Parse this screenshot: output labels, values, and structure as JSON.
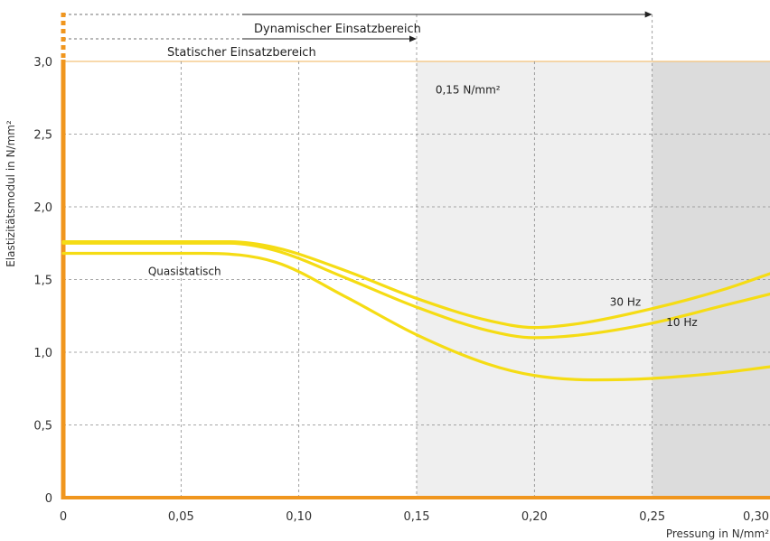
{
  "chart_data": {
    "type": "line",
    "xlabel": "Pressung in N/mm²",
    "ylabel": "Elastizitätsmodul in N/mm²",
    "xlim": [
      0,
      0.3
    ],
    "ylim": [
      0,
      3.0
    ],
    "x_ticks": [
      {
        "v": 0,
        "label": "0"
      },
      {
        "v": 0.05,
        "label": "0,05"
      },
      {
        "v": 0.1,
        "label": "0,10"
      },
      {
        "v": 0.15,
        "label": "0,15"
      },
      {
        "v": 0.2,
        "label": "0,20"
      },
      {
        "v": 0.25,
        "label": "0,25"
      },
      {
        "v": 0.3,
        "label": "0,30"
      }
    ],
    "y_ticks": [
      {
        "v": 0,
        "label": "0"
      },
      {
        "v": 0.5,
        "label": "0,5"
      },
      {
        "v": 1.0,
        "label": "1,0"
      },
      {
        "v": 1.5,
        "label": "1,5"
      },
      {
        "v": 2.0,
        "label": "2,0"
      },
      {
        "v": 2.5,
        "label": "2,5"
      },
      {
        "v": 3.0,
        "label": "3,0"
      }
    ],
    "grid": true,
    "regions": [
      {
        "from": 0.15,
        "to": 0.25,
        "color": "#efefef"
      },
      {
        "from": 0.25,
        "to": 0.3,
        "color": "#dcdcdc"
      }
    ],
    "ranges": [
      {
        "label": "Dynamischer Einsatzbereich",
        "from": 0,
        "to": 0.25
      },
      {
        "label": "Statischer Einsatzbereich",
        "from": 0,
        "to": 0.15
      }
    ],
    "annotation": {
      "text": "0,15 N/mm²",
      "x": 0.158,
      "y": 2.78
    },
    "series": [
      {
        "name": "30 Hz",
        "color": "#f5dc14",
        "label_at": {
          "x": 0.232,
          "y": 1.32
        },
        "x": [
          0,
          0.07,
          0.09,
          0.12,
          0.15,
          0.18,
          0.2,
          0.22,
          0.25,
          0.28,
          0.3
        ],
        "y": [
          1.76,
          1.76,
          1.72,
          1.56,
          1.37,
          1.22,
          1.17,
          1.2,
          1.3,
          1.43,
          1.54
        ]
      },
      {
        "name": "10 Hz",
        "color": "#f5dc14",
        "label_at": {
          "x": 0.256,
          "y": 1.18
        },
        "x": [
          0,
          0.07,
          0.09,
          0.12,
          0.15,
          0.18,
          0.2,
          0.22,
          0.25,
          0.28,
          0.3
        ],
        "y": [
          1.75,
          1.75,
          1.7,
          1.51,
          1.31,
          1.15,
          1.1,
          1.12,
          1.2,
          1.32,
          1.4
        ]
      },
      {
        "name": "Quasistatisch",
        "color": "#f5dc14",
        "label_at": {
          "x": 0.036,
          "y": 1.53
        },
        "x": [
          0,
          0.06,
          0.09,
          0.12,
          0.15,
          0.18,
          0.2,
          0.225,
          0.25,
          0.28,
          0.3
        ],
        "y": [
          1.68,
          1.68,
          1.62,
          1.38,
          1.12,
          0.92,
          0.84,
          0.81,
          0.82,
          0.86,
          0.9
        ]
      }
    ]
  }
}
